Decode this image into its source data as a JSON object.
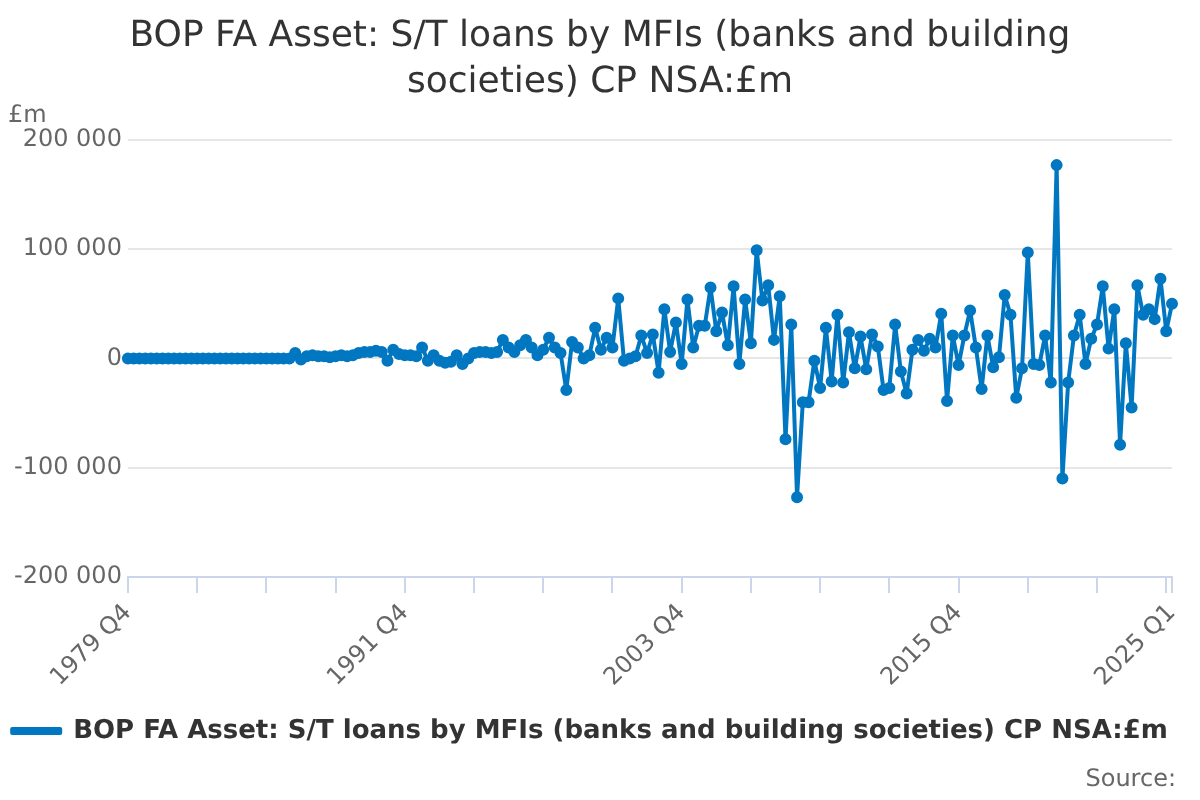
{
  "chart_data": {
    "type": "line",
    "title": "BOP FA Asset: S/T loans by MFIs (banks and building societies) CP NSA:£m",
    "ylabel": "£m",
    "categories": [
      "1979 Q4",
      null,
      null,
      null,
      null,
      null,
      null,
      null,
      null,
      null,
      null,
      null,
      null,
      null,
      null,
      null,
      null,
      null,
      null,
      null,
      null,
      null,
      null,
      null,
      null,
      null,
      null,
      null,
      null,
      null,
      null,
      null,
      null,
      null,
      null,
      null,
      null,
      null,
      null,
      null,
      null,
      null,
      null,
      null,
      null,
      null,
      null,
      null,
      "1991 Q4",
      null,
      null,
      null,
      null,
      null,
      null,
      null,
      null,
      null,
      null,
      null,
      null,
      null,
      null,
      null,
      null,
      null,
      null,
      null,
      null,
      null,
      null,
      null,
      null,
      null,
      null,
      null,
      null,
      null,
      null,
      null,
      null,
      null,
      null,
      null,
      null,
      null,
      null,
      null,
      null,
      null,
      null,
      null,
      null,
      null,
      null,
      null,
      "2003 Q4",
      null,
      null,
      null,
      null,
      null,
      null,
      null,
      null,
      null,
      null,
      null,
      null,
      null,
      null,
      null,
      null,
      null,
      null,
      null,
      null,
      null,
      null,
      null,
      null,
      null,
      null,
      null,
      null,
      null,
      null,
      null,
      null,
      null,
      null,
      null,
      null,
      null,
      null,
      null,
      null,
      null,
      null,
      null,
      null,
      null,
      null,
      null,
      "2015 Q4",
      null,
      null,
      null,
      null,
      null,
      null,
      null,
      null,
      null,
      null,
      null,
      null,
      null,
      null,
      null,
      null,
      null,
      null,
      null,
      null,
      null,
      null,
      null,
      null,
      null,
      null,
      null,
      null,
      null,
      null,
      null,
      null,
      null,
      null,
      null,
      null,
      "2025 Q1"
    ],
    "series": [
      {
        "name": "BOP FA Asset: S/T loans by MFIs (banks and building societies) CP NSA:£m",
        "color": "#0077c0",
        "values": [
          0,
          0,
          0,
          0,
          0,
          0,
          0,
          0,
          0,
          0,
          0,
          0,
          0,
          0,
          0,
          0,
          0,
          0,
          0,
          0,
          0,
          0,
          0,
          0,
          0,
          0,
          0,
          0,
          0,
          5000,
          -1000,
          2000,
          3000,
          2000,
          2000,
          1000,
          2000,
          3000,
          2000,
          3000,
          5000,
          6000,
          6000,
          7000,
          6000,
          -2000,
          8000,
          4000,
          3000,
          3000,
          2000,
          10000,
          -2000,
          3000,
          -2000,
          -4000,
          -3000,
          3000,
          -5000,
          0,
          5000,
          6000,
          6000,
          5000,
          6000,
          17000,
          10000,
          6000,
          12000,
          17000,
          10000,
          3000,
          8000,
          19000,
          10000,
          5000,
          -29000,
          15000,
          10000,
          0,
          3000,
          28000,
          8000,
          19000,
          10000,
          55000,
          -2000,
          0,
          2000,
          21000,
          5000,
          22000,
          -13000,
          45000,
          6000,
          33000,
          -5000,
          54000,
          10000,
          30000,
          30000,
          65000,
          25000,
          42000,
          12000,
          66000,
          -5000,
          54000,
          14000,
          99000,
          53000,
          67000,
          17000,
          57000,
          -74000,
          31000,
          -127000,
          -40000,
          -40000,
          -2000,
          -27000,
          28000,
          -21000,
          40000,
          -22000,
          24000,
          -9000,
          20000,
          -10000,
          22000,
          11000,
          -29000,
          -27000,
          31000,
          -12000,
          -32000,
          8000,
          17000,
          7000,
          18000,
          10000,
          41000,
          -39000,
          21000,
          -6000,
          21000,
          44000,
          10000,
          -28000,
          21000,
          -8000,
          1000,
          58000,
          40000,
          -36000,
          -9000,
          97000,
          -5000,
          -6000,
          21000,
          -22000,
          177000,
          -110000,
          -22000,
          21000,
          40000,
          -5000,
          18000,
          31000,
          66000,
          9000,
          45000,
          -79000,
          14000,
          -45000,
          67000,
          40000,
          45000,
          36000,
          73000,
          25000,
          50000
        ]
      }
    ],
    "ylim": [
      -200000,
      200000
    ],
    "yticks": [
      {
        "value": -200000,
        "label": "-200 000"
      },
      {
        "value": -100000,
        "label": "-100 000"
      },
      {
        "value": 0,
        "label": "0"
      },
      {
        "value": 100000,
        "label": "100 000"
      },
      {
        "value": 200000,
        "label": "200 000"
      }
    ],
    "grid": "y",
    "legend": "bottom",
    "marker": "circle",
    "line_style": "solid",
    "annotations": [
      "Source:"
    ]
  }
}
